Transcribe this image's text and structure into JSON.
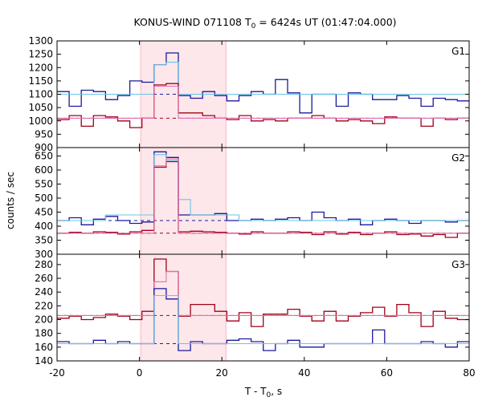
{
  "chart_data": {
    "type": "line",
    "title": "KONUS-WIND 071108 T",
    "title_sub": "0",
    "title_rest": " = 6424s UT (01:47:04.000)",
    "xlabel": "T - T",
    "xlabel_sub": "0",
    "xlabel_rest": ", s",
    "ylabel": "counts / sec",
    "xlim": [
      -20,
      80
    ],
    "x_ticks": [
      -20,
      0,
      20,
      40,
      60,
      80
    ],
    "highlight_interval": [
      0.3,
      21.0
    ],
    "colors": {
      "dark_blue": "#1a1a9e",
      "light_blue": "#6ac4e6",
      "dark_red": "#a00018",
      "pink": "#e06fae",
      "highlight": "#fde7ea"
    },
    "panels": [
      {
        "label": "G1",
        "ylim": [
          900,
          1300
        ],
        "yticks": [
          900,
          950,
          1000,
          1050,
          1100,
          1150,
          1200,
          1250,
          1300
        ],
        "bin_start": -20,
        "bin_width": 2.944,
        "background_levels": {
          "blue": 1100,
          "red": 1010
        },
        "series": [
          {
            "name": "G1 count rate (blue)",
            "color": "#1a1a9e",
            "values": [
              1110,
              1055,
              1115,
              1110,
              1080,
              1095,
              1150,
              1145,
              1210,
              1255,
              1095,
              1085,
              1110,
              1095,
              1075,
              1095,
              1110,
              1100,
              1155,
              1105,
              1030,
              1100,
              1100,
              1055,
              1105,
              1100,
              1080,
              1080,
              1095,
              1085,
              1055,
              1085,
              1080,
              1075,
              1105
            ]
          },
          {
            "name": "G1 fit (light blue)",
            "color": "#6ac4e6",
            "values": [
              1100,
              1100,
              1100,
              1100,
              1100,
              1100,
              1100,
              1100,
              1210,
              1220,
              1100,
              1100,
              1100,
              1100,
              1100,
              1100,
              1100,
              1100,
              1100,
              1100,
              1100,
              1100,
              1100,
              1100,
              1100,
              1100,
              1100,
              1100,
              1100,
              1100,
              1100,
              1100,
              1100,
              1100,
              1100
            ]
          },
          {
            "name": "G1 count rate (red)",
            "color": "#a00018",
            "values": [
              1005,
              1020,
              980,
              1020,
              1015,
              1000,
              975,
              1010,
              1135,
              1140,
              1030,
              1030,
              1020,
              1010,
              1005,
              1020,
              1000,
              1005,
              1000,
              1010,
              1010,
              1020,
              1010,
              1000,
              1005,
              1000,
              990,
              1015,
              1010,
              1010,
              980,
              1010,
              1005,
              1010,
              1000
            ]
          },
          {
            "name": "G1 fit (pink)",
            "color": "#e06fae",
            "values": [
              1010,
              1010,
              1010,
              1010,
              1010,
              1010,
              1010,
              1010,
              1130,
              1130,
              1010,
              1010,
              1010,
              1010,
              1010,
              1010,
              1010,
              1010,
              1010,
              1010,
              1010,
              1010,
              1010,
              1010,
              1010,
              1010,
              1010,
              1010,
              1010,
              1010,
              1010,
              1010,
              1010,
              1010,
              1010
            ]
          }
        ]
      },
      {
        "label": "G2",
        "ylim": [
          300,
          680
        ],
        "yticks": [
          300,
          350,
          400,
          450,
          500,
          550,
          600,
          650
        ],
        "bin_start": -20,
        "bin_width": 2.944,
        "background_levels": {
          "blue": 420,
          "red": 375
        },
        "series": [
          {
            "name": "G2 count rate (blue)",
            "color": "#1a1a9e",
            "values": [
              420,
              430,
              405,
              425,
              435,
              420,
              410,
              415,
              665,
              645,
              440,
              440,
              440,
              445,
              420,
              420,
              425,
              420,
              425,
              430,
              420,
              450,
              430,
              420,
              425,
              405,
              420,
              425,
              420,
              410,
              420,
              420,
              415,
              420,
              410
            ]
          },
          {
            "name": "G2 fit (light blue)",
            "color": "#6ac4e6",
            "values": [
              420,
              420,
              420,
              420,
              440,
              440,
              440,
              440,
              655,
              635,
              495,
              440,
              440,
              440,
              440,
              420,
              420,
              420,
              420,
              420,
              420,
              420,
              420,
              420,
              420,
              420,
              420,
              420,
              420,
              420,
              420,
              420,
              420,
              420,
              420
            ]
          },
          {
            "name": "G2 count rate (red)",
            "color": "#a00018",
            "values": [
              375,
              378,
              375,
              380,
              378,
              372,
              380,
              385,
              610,
              630,
              380,
              382,
              380,
              378,
              375,
              372,
              380,
              375,
              375,
              380,
              378,
              370,
              380,
              372,
              378,
              370,
              375,
              380,
              370,
              372,
              365,
              370,
              360,
              375,
              385
            ]
          },
          {
            "name": "G2 fit (pink)",
            "color": "#e06fae",
            "values": [
              375,
              375,
              375,
              375,
              375,
              375,
              375,
              375,
              615,
              640,
              375,
              375,
              375,
              375,
              375,
              375,
              375,
              375,
              375,
              375,
              375,
              375,
              375,
              375,
              375,
              375,
              375,
              375,
              375,
              375,
              375,
              375,
              375,
              375,
              375
            ]
          }
        ]
      },
      {
        "label": "G3",
        "ylim": [
          140,
          295
        ],
        "yticks": [
          140,
          160,
          180,
          200,
          220,
          240,
          260,
          280
        ],
        "bin_start": -20,
        "bin_width": 2.944,
        "background_levels": {
          "blue": 165,
          "red": 206
        },
        "series": [
          {
            "name": "G3 count rate (red)",
            "color": "#a00018",
            "values": [
              202,
              205,
              200,
              203,
              208,
              205,
              200,
              212,
              288,
              270,
              205,
              222,
              222,
              212,
              198,
              210,
              190,
              208,
              208,
              215,
              205,
              198,
              212,
              198,
              205,
              210,
              218,
              205,
              222,
              210,
              190,
              212,
              202,
              200,
              210
            ]
          },
          {
            "name": "G3 fit (pink)",
            "color": "#e06fae",
            "values": [
              206,
              206,
              206,
              206,
              206,
              206,
              206,
              206,
              255,
              270,
              206,
              206,
              206,
              206,
              206,
              206,
              206,
              206,
              206,
              206,
              206,
              206,
              206,
              206,
              206,
              206,
              206,
              206,
              206,
              206,
              206,
              206,
              206,
              206,
              206
            ]
          },
          {
            "name": "G3 count rate (blue)",
            "color": "#1a1a9e",
            "values": [
              168,
              165,
              165,
              170,
              165,
              168,
              165,
              165,
              245,
              230,
              155,
              168,
              165,
              165,
              170,
              172,
              168,
              155,
              165,
              170,
              160,
              160,
              165,
              165,
              165,
              165,
              185,
              165,
              165,
              165,
              168,
              165,
              160,
              168,
              170
            ]
          },
          {
            "name": "G3 fit (light blue)",
            "color": "#6ac4e6",
            "values": [
              165,
              165,
              165,
              165,
              165,
              165,
              165,
              165,
              235,
              235,
              165,
              165,
              165,
              165,
              165,
              165,
              165,
              165,
              165,
              165,
              165,
              165,
              165,
              165,
              165,
              165,
              165,
              165,
              165,
              165,
              165,
              165,
              165,
              165,
              165
            ]
          }
        ]
      }
    ]
  }
}
